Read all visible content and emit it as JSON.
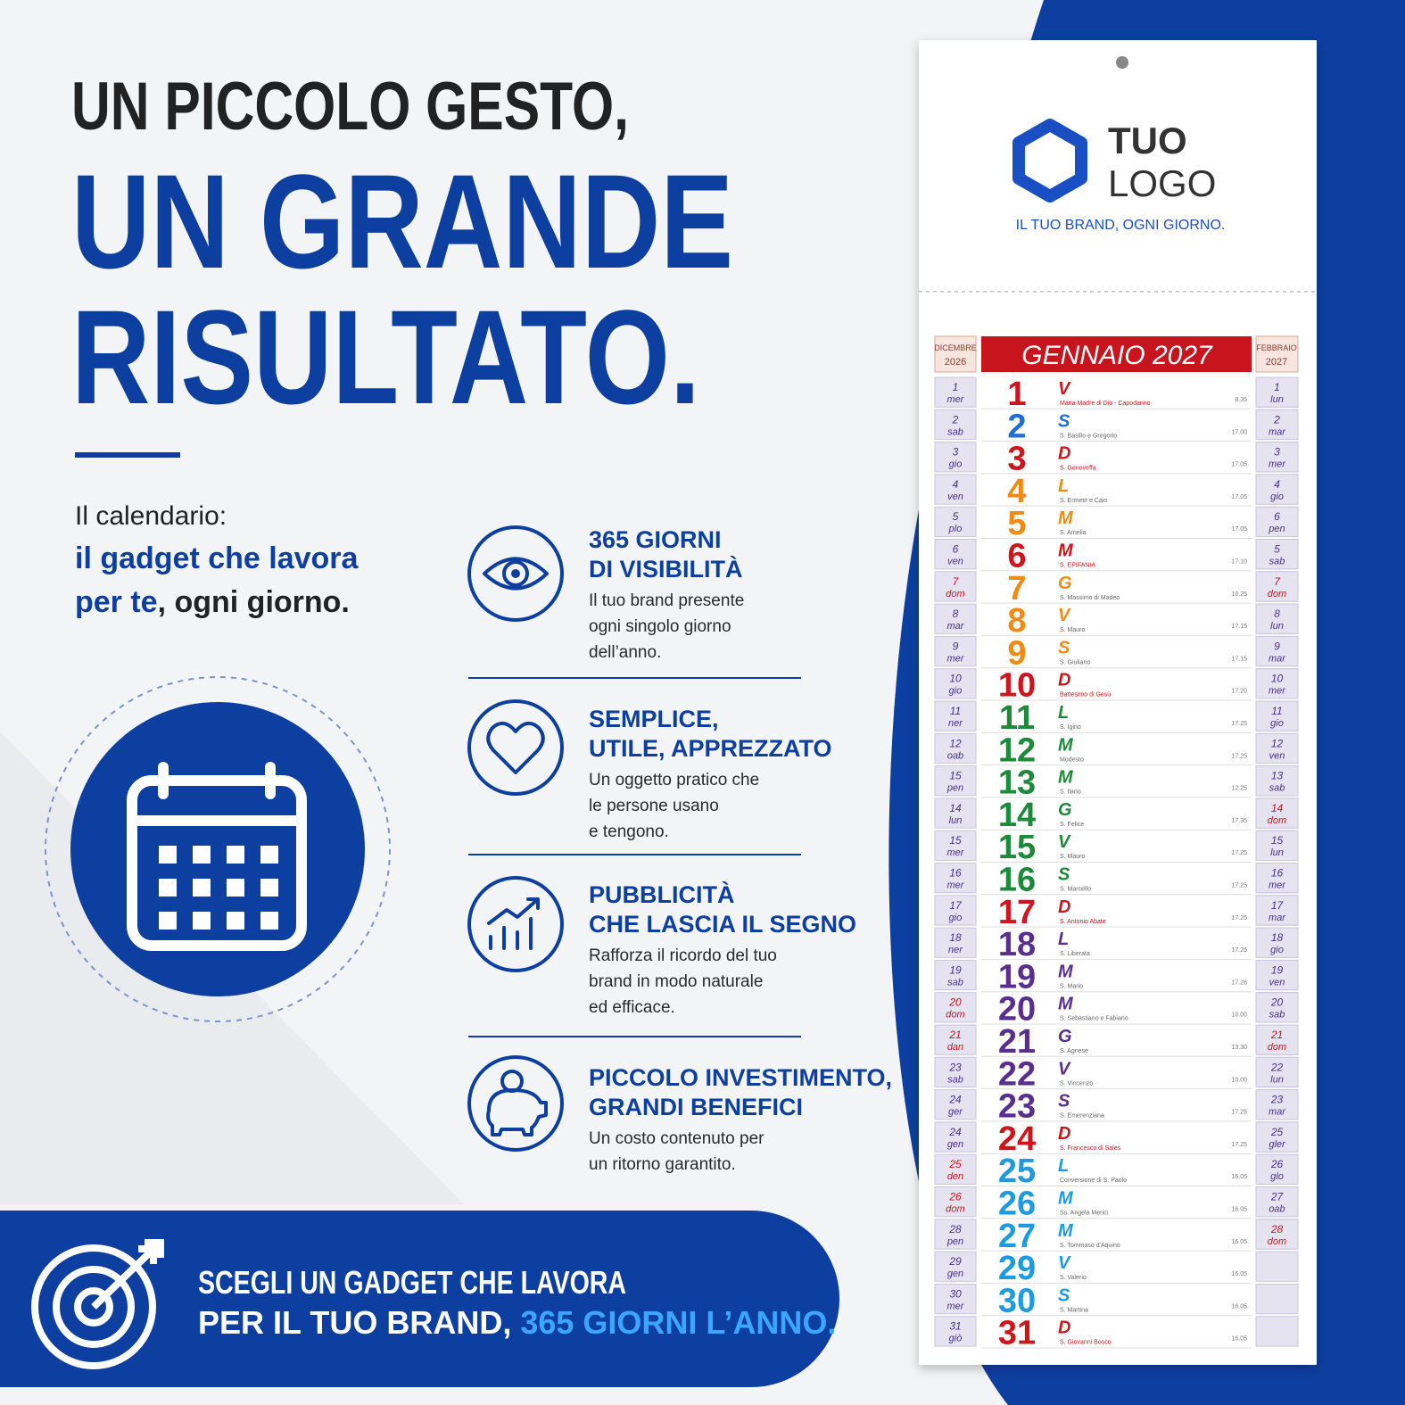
{
  "headline": {
    "line1": "UN PICCOLO GESTO,",
    "line2": "UN GRANDE",
    "line3": "RISULTATO."
  },
  "intro": {
    "line1": "Il calendario:",
    "line2": "il gadget che lavora",
    "line3a": "per te",
    "line3b": ", ogni giorno."
  },
  "features": [
    {
      "title": [
        "365 GIORNI",
        "DI VISIBILITÀ"
      ],
      "text": [
        "Il tuo brand presente",
        "ogni singolo giorno",
        "dell’anno."
      ]
    },
    {
      "title": [
        "SEMPLICE,",
        "UTILE, APPREZZATO"
      ],
      "text": [
        "Un oggetto pratico che",
        "le persone usano",
        "e tengono."
      ]
    },
    {
      "title": [
        "PUBBLICITÀ",
        "CHE LASCIA IL SEGNO"
      ],
      "text": [
        "Rafforza il ricordo del tuo",
        "brand in modo naturale",
        "ed efficace."
      ]
    },
    {
      "title": [
        "PICCOLO INVESTIMENTO,",
        "GRANDI BENEFICI"
      ],
      "text": [
        "Un costo contenuto per",
        "un ritorno garantito."
      ]
    }
  ],
  "banner": {
    "line1": "SCEGLI UN GADGET CHE LAVORA",
    "line2a": "PER IL TUO BRAND, ",
    "line2b": "365 GIORNI L’ANNO."
  },
  "calendar": {
    "logo": {
      "line1": "TUO",
      "line2": "LOGO"
    },
    "tagline": "IL TUO BRAND, OGNI GIORNO.",
    "month": "GENNAIO 2027",
    "prev": {
      "month": "DICEMBRE",
      "year": "2026",
      "days": [
        [
          "1",
          "mer"
        ],
        [
          "2",
          "sab"
        ],
        [
          "3",
          "gio"
        ],
        [
          "4",
          "ven"
        ],
        [
          "5",
          "plo"
        ],
        [
          "6",
          "ven"
        ],
        [
          "7",
          "dom"
        ],
        [
          "8",
          "mar"
        ],
        [
          "9",
          "mer"
        ],
        [
          "10",
          "gio"
        ],
        [
          "11",
          "ner"
        ],
        [
          "12",
          "oab"
        ],
        [
          "15",
          "pen"
        ],
        [
          "14",
          "lun"
        ],
        [
          "15",
          "mer"
        ],
        [
          "16",
          "mer"
        ],
        [
          "17",
          "gio"
        ],
        [
          "18",
          "ner"
        ],
        [
          "19",
          "sab"
        ],
        [
          "20",
          "dom"
        ],
        [
          "21",
          "dan"
        ],
        [
          "23",
          "sab"
        ],
        [
          "24",
          "ger"
        ],
        [
          "24",
          "gen"
        ],
        [
          "25",
          "den"
        ],
        [
          "26",
          "dom"
        ],
        [
          "28",
          "pen"
        ],
        [
          "29",
          "gen"
        ],
        [
          "30",
          "mer"
        ],
        [
          "31",
          "giò"
        ]
      ]
    },
    "next": {
      "month": "FEBBRAIO",
      "year": "2027",
      "days": [
        [
          "1",
          "lun"
        ],
        [
          "2",
          "mar"
        ],
        [
          "3",
          "mer"
        ],
        [
          "4",
          "gio"
        ],
        [
          "6",
          "pen"
        ],
        [
          "5",
          "sab"
        ],
        [
          "7",
          "dom"
        ],
        [
          "8",
          "lun"
        ],
        [
          "9",
          "mar"
        ],
        [
          "10",
          "mer"
        ],
        [
          "11",
          "gio"
        ],
        [
          "12",
          "ven"
        ],
        [
          "13",
          "sab"
        ],
        [
          "14",
          "dom"
        ],
        [
          "15",
          "lun"
        ],
        [
          "16",
          "mer"
        ],
        [
          "17",
          "mar"
        ],
        [
          "18",
          "gio"
        ],
        [
          "19",
          "ven"
        ],
        [
          "20",
          "sab"
        ],
        [
          "21",
          "dom"
        ],
        [
          "22",
          "lun"
        ],
        [
          "23",
          "mar"
        ],
        [
          "25",
          "gler"
        ],
        [
          "26",
          "glo"
        ],
        [
          "27",
          "oab"
        ],
        [
          "28",
          "dom"
        ]
      ]
    },
    "days": [
      {
        "n": "1",
        "letter": "V",
        "saint": "Maria Madre di Dio - Capodanno",
        "time": "8.35",
        "color": "#d0141c"
      },
      {
        "n": "2",
        "letter": "S",
        "saint": "S. Basilio e Gregorio",
        "time": "17.00",
        "color": "#1f6fd6"
      },
      {
        "n": "3",
        "letter": "D",
        "saint": "S. Genoveffa",
        "time": "17.05",
        "color": "#d0141c"
      },
      {
        "n": "4",
        "letter": "L",
        "saint": "S. Ermete e Caio",
        "time": "17.05",
        "color": "#f08a12"
      },
      {
        "n": "5",
        "letter": "M",
        "saint": "S. Amelia",
        "time": "17.05",
        "color": "#f08a12"
      },
      {
        "n": "6",
        "letter": "M",
        "saint": "S. EPIFANIA",
        "time": "17.10",
        "color": "#d0141c"
      },
      {
        "n": "7",
        "letter": "G",
        "saint": "S. Massimo di Madeo",
        "time": "10.25",
        "color": "#f08a12"
      },
      {
        "n": "8",
        "letter": "V",
        "saint": "S. Mauro",
        "time": "17.15",
        "color": "#f08a12"
      },
      {
        "n": "9",
        "letter": "S",
        "saint": "S. Giuliano",
        "time": "17.15",
        "color": "#f08a12"
      },
      {
        "n": "10",
        "letter": "D",
        "saint": "Battesimo di Gesù",
        "time": "17.20",
        "color": "#d0141c"
      },
      {
        "n": "11",
        "letter": "L",
        "saint": "S. Igino",
        "time": "17.25",
        "color": "#1d8a3a"
      },
      {
        "n": "12",
        "letter": "M",
        "saint": "Modesto",
        "time": "17.25",
        "color": "#1d8a3a"
      },
      {
        "n": "13",
        "letter": "M",
        "saint": "S. Ilario",
        "time": "12.25",
        "color": "#1d8a3a"
      },
      {
        "n": "14",
        "letter": "G",
        "saint": "S. Felice",
        "time": "17.35",
        "color": "#1d8a3a"
      },
      {
        "n": "15",
        "letter": "V",
        "saint": "S. Mauro",
        "time": "17.25",
        "color": "#1d8a3a"
      },
      {
        "n": "16",
        "letter": "S",
        "saint": "S. Marcello",
        "time": "17.25",
        "color": "#1d8a3a"
      },
      {
        "n": "17",
        "letter": "D",
        "saint": "S. Antonio Abate",
        "time": "17.25",
        "color": "#d0141c"
      },
      {
        "n": "18",
        "letter": "L",
        "saint": "S. Liberata",
        "time": "17.25",
        "color": "#5a2d91"
      },
      {
        "n": "19",
        "letter": "M",
        "saint": "S. Mario",
        "time": "17.26",
        "color": "#5a2d91"
      },
      {
        "n": "20",
        "letter": "M",
        "saint": "S. Sebastiano e Fabiano",
        "time": "10.00",
        "color": "#5a2d91"
      },
      {
        "n": "21",
        "letter": "G",
        "saint": "S. Agnese",
        "time": "13.30",
        "color": "#5a2d91"
      },
      {
        "n": "22",
        "letter": "V",
        "saint": "S. Vincenzo",
        "time": "10.00",
        "color": "#5a2d91"
      },
      {
        "n": "23",
        "letter": "S",
        "saint": "S. Emerenziana",
        "time": "17.25",
        "color": "#5a2d91"
      },
      {
        "n": "24",
        "letter": "D",
        "saint": "S. Francesco di Sales",
        "time": "17.25",
        "color": "#d0141c"
      },
      {
        "n": "25",
        "letter": "L",
        "saint": "Conversione di S. Paolo",
        "time": "16.05",
        "color": "#1e9be0"
      },
      {
        "n": "26",
        "letter": "M",
        "saint": "Ss. Angela Merici",
        "time": "16.05",
        "color": "#1e9be0"
      },
      {
        "n": "27",
        "letter": "M",
        "saint": "S. Tommaso d'Aquino",
        "time": "16.05",
        "color": "#1e9be0"
      },
      {
        "n": "29",
        "letter": "V",
        "saint": "S. Valerio",
        "time": "16.05",
        "color": "#1e9be0"
      },
      {
        "n": "30",
        "letter": "S",
        "saint": "S. Martina",
        "time": "16.05",
        "color": "#1e9be0"
      },
      {
        "n": "31",
        "letter": "D",
        "saint": "S. Giovanni Bosco",
        "time": "16.05",
        "color": "#d0141c"
      }
    ]
  }
}
